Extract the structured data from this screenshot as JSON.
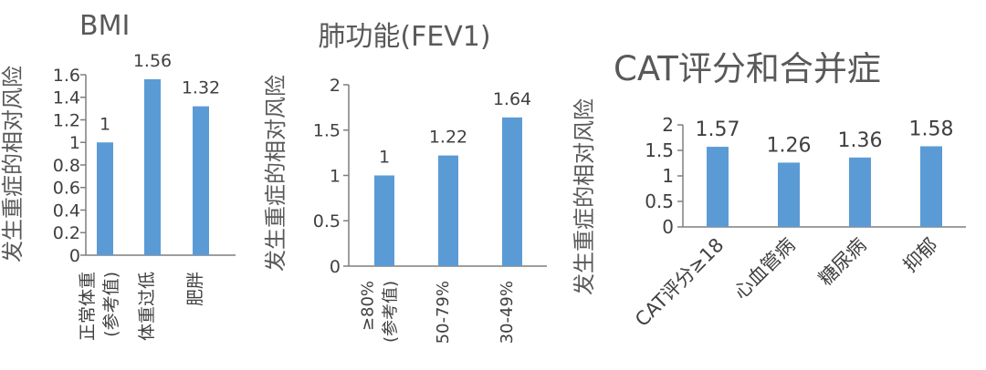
{
  "colors": {
    "bar": "#5b9bd5",
    "axis": "#7f7f7f",
    "text": "#404040",
    "title": "#595959"
  },
  "chart_data": [
    {
      "type": "bar",
      "title": "BMI",
      "ylabel": "发生重症的相对风险",
      "categories": [
        "正常体重(参考值)",
        "体重过低",
        "肥胖"
      ],
      "category_lines": [
        [
          "正常体重",
          "(参考值)"
        ],
        [
          "体重过低"
        ],
        [
          "肥胖"
        ]
      ],
      "values": [
        1,
        1.56,
        1.32
      ],
      "value_labels": [
        "1",
        "1.56",
        "1.32"
      ],
      "ylim": [
        0,
        1.6
      ],
      "yticks": [
        0,
        0.2,
        0.4,
        0.6,
        0.8,
        1,
        1.2,
        1.4,
        1.6
      ],
      "ytick_labels": [
        "0",
        "0.2",
        "0.4",
        "0.6",
        "0.8",
        "1",
        "1.2",
        "1.4",
        "1.6"
      ],
      "grid": false,
      "legend": "none"
    },
    {
      "type": "bar",
      "title": "肺功能(FEV1)",
      "ylabel": "发生重症的相对风险",
      "categories": [
        "≥80%(参考值)",
        "50-79%",
        "30-49%"
      ],
      "category_lines": [
        [
          "≥80%",
          "(参考值)"
        ],
        [
          "50-79%"
        ],
        [
          "30-49%"
        ]
      ],
      "values": [
        1,
        1.22,
        1.64
      ],
      "value_labels": [
        "1",
        "1.22",
        "1.64"
      ],
      "ylim": [
        0,
        2
      ],
      "yticks": [
        0,
        0.5,
        1,
        1.5,
        2
      ],
      "ytick_labels": [
        "0",
        "0.5",
        "1",
        "1.5",
        "2"
      ],
      "grid": false,
      "legend": "none"
    },
    {
      "type": "bar",
      "title": "CAT评分和合并症",
      "ylabel": "发生重症的相对风险",
      "categories": [
        "CAT评分≥18",
        "心血管病",
        "糖尿病",
        "抑郁"
      ],
      "category_lines": [
        [
          "CAT评分≥18"
        ],
        [
          "心血管病"
        ],
        [
          "糖尿病"
        ],
        [
          "抑郁"
        ]
      ],
      "values": [
        1.57,
        1.26,
        1.36,
        1.58
      ],
      "value_labels": [
        "1.57",
        "1.26",
        "1.36",
        "1.58"
      ],
      "ylim": [
        0,
        2
      ],
      "yticks": [
        0,
        0.5,
        1,
        1.5,
        2
      ],
      "ytick_labels": [
        "0",
        "0.5",
        "1",
        "1.5",
        "2"
      ],
      "grid": false,
      "legend": "none"
    }
  ]
}
